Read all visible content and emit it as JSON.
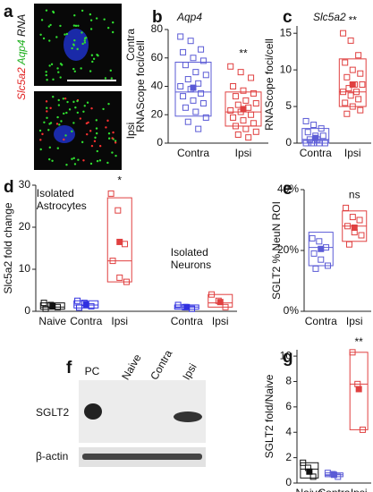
{
  "image_panels": {
    "a": {
      "panel_label": "a",
      "channel_labels": [
        {
          "text": "Slc5a2",
          "color": "#e02020"
        },
        {
          "text": "Aqp4",
          "color": "#20b020"
        },
        {
          "text": "RNA",
          "color": "#111111"
        }
      ],
      "row_labels": [
        "Contra",
        "Ipsi"
      ]
    },
    "f": {
      "panel_label": "f",
      "lane_labels": [
        "PC",
        "Naive",
        "Contra",
        "Ipsi"
      ],
      "row_labels": [
        "SGLT2",
        "β-actin"
      ]
    }
  },
  "chart_data": [
    {
      "type": "box",
      "panel_label": "b",
      "title": "Aqp4",
      "y_label": "RNAScope foci/cell",
      "ylim": [
        0,
        80
      ],
      "yticks": [
        0,
        20,
        40,
        60,
        80
      ],
      "categories": [
        "Contra",
        "Ipsi"
      ],
      "annotations": [
        {
          "text": "**",
          "category": 1
        }
      ],
      "boxes": [
        {
          "color": "#5b5bd6",
          "low": 19,
          "high": 57,
          "median": 36,
          "mean": 39,
          "points": [
            75,
            72,
            66,
            64,
            60,
            58,
            55,
            50,
            48,
            45,
            42,
            40,
            38,
            35,
            33,
            30,
            28,
            25,
            22,
            18,
            15,
            10
          ]
        },
        {
          "color": "#e04040",
          "low": 12,
          "high": 36,
          "median": 22,
          "mean": 24,
          "points": [
            54,
            50,
            46,
            40,
            37,
            35,
            33,
            30,
            28,
            27,
            25,
            23,
            22,
            20,
            18,
            16,
            14,
            12,
            10,
            8,
            6,
            4
          ]
        }
      ]
    },
    {
      "type": "box",
      "panel_label": "c",
      "title": "Slc5a2",
      "y_label": "RNAScope foci/cell",
      "ylim": [
        0,
        16
      ],
      "yticks": [
        0,
        5,
        10,
        15
      ],
      "categories": [
        "Contra",
        "Ipsi"
      ],
      "annotations": [
        {
          "text": "**",
          "category": 1
        }
      ],
      "boxes": [
        {
          "color": "#5b5bd6",
          "low": 0,
          "high": 2,
          "median": 0.5,
          "mean": 0.7,
          "points": [
            3,
            2.5,
            2,
            1.5,
            1,
            1,
            0.5,
            0.5,
            0,
            0,
            0,
            0,
            0
          ]
        },
        {
          "color": "#e04040",
          "low": 5,
          "high": 11.5,
          "median": 7,
          "mean": 8,
          "points": [
            15,
            14,
            12,
            11,
            10,
            9.5,
            9,
            8,
            8,
            7.5,
            7,
            7,
            6.5,
            6,
            5.5,
            5,
            4.5,
            4
          ]
        }
      ]
    },
    {
      "type": "box",
      "panel_label": "d",
      "y_label": "Slc5a2 fold change",
      "ylim": [
        0,
        30
      ],
      "yticks": [
        0,
        10,
        20,
        30
      ],
      "categories": [
        "Naive",
        "Contra",
        "Ipsi",
        null,
        "Contra",
        "Ipsi"
      ],
      "annotations": [
        {
          "text": "Isolated Astrocytes",
          "category": 0
        },
        {
          "text": "*",
          "category": 2
        },
        {
          "text": "Isolated Neurons",
          "category": 4
        }
      ],
      "boxes": [
        {
          "color": "#111111",
          "low": 0.5,
          "high": 2,
          "median": 1,
          "mean": 1.2,
          "points": [
            2,
            1.5,
            1,
            0.6
          ]
        },
        {
          "color": "#3030e0",
          "low": 0.8,
          "high": 2.5,
          "median": 1.5,
          "mean": 1.6,
          "points": [
            2.5,
            2,
            1.2,
            0.9
          ]
        },
        {
          "color": "#e04040",
          "low": 7,
          "high": 27,
          "median": 12,
          "mean": 16.5,
          "points": [
            28,
            24,
            16,
            12,
            8,
            7
          ]
        },
        null,
        {
          "color": "#3030e0",
          "low": 0.5,
          "high": 1.5,
          "median": 1,
          "mean": 1,
          "points": [
            1.5,
            1,
            0.6
          ]
        },
        {
          "color": "#e04040",
          "low": 1,
          "high": 4,
          "median": 2,
          "mean": 2.2,
          "points": [
            4,
            2.5,
            1
          ]
        }
      ]
    },
    {
      "type": "box",
      "panel_label": "e",
      "y_label": "SGLT2 % NeuN ROI",
      "ylim": [
        0,
        40
      ],
      "yticks": [
        {
          "value": 0,
          "label": "0%"
        },
        {
          "value": 20,
          "label": "20%"
        },
        {
          "value": 40,
          "label": "40%"
        }
      ],
      "categories": [
        "Contra",
        "Ipsi"
      ],
      "annotations": [
        {
          "text": "ns",
          "category": 1
        }
      ],
      "boxes": [
        {
          "color": "#5b5bd6",
          "low": 15,
          "high": 26,
          "median": 21,
          "mean": 20.5,
          "points": [
            24,
            23,
            21,
            19,
            17,
            15,
            14
          ]
        },
        {
          "color": "#e04040",
          "low": 23,
          "high": 33,
          "median": 28,
          "mean": 27.5,
          "points": [
            34,
            31,
            30,
            28,
            26,
            25,
            22
          ]
        }
      ]
    },
    {
      "type": "box",
      "panel_label": "g",
      "y_label": "SGLT2 fold/Naive",
      "ylim": [
        0,
        10.5
      ],
      "yticks": [
        0,
        2,
        4,
        6,
        8,
        10
      ],
      "categories": [
        "Naive",
        "Contra",
        "Ipsi"
      ],
      "annotations": [
        {
          "text": "**",
          "category": 2
        }
      ],
      "boxes": [
        {
          "color": "#111111",
          "low": 0.4,
          "high": 1.6,
          "median": 1.1,
          "mean": 0.9,
          "points": [
            1.6,
            1.2,
            0.5
          ]
        },
        {
          "color": "#5b5bd6",
          "low": 0.5,
          "high": 0.8,
          "median": 0.65,
          "mean": 0.65,
          "points": [
            0.8,
            0.7,
            0.5
          ]
        },
        {
          "color": "#e04040",
          "low": 4.2,
          "high": 10.3,
          "median": 7.8,
          "mean": 7.4,
          "points": [
            10.3,
            7.8,
            4.2
          ]
        }
      ]
    }
  ]
}
